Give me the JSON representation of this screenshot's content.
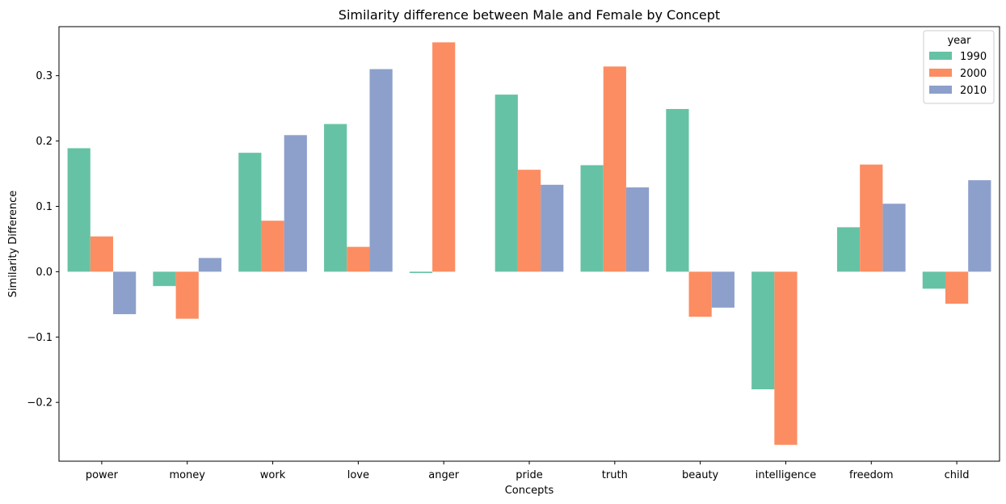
{
  "chart_data": {
    "type": "bar",
    "title": "Similarity difference between Male and Female by Concept",
    "xlabel": "Concepts",
    "ylabel": "Similarity Difference",
    "ylim": [
      -0.29,
      0.375
    ],
    "yticks": [
      -0.2,
      -0.1,
      0.0,
      0.1,
      0.2,
      0.3
    ],
    "ytick_labels": [
      "−0.2",
      "−0.1",
      "0.0",
      "0.1",
      "0.2",
      "0.3"
    ],
    "grid": false,
    "legend": {
      "title": "year",
      "placement": "top-right"
    },
    "categories": [
      "power",
      "money",
      "work",
      "love",
      "anger",
      "pride",
      "truth",
      "beauty",
      "intelligence",
      "freedom",
      "child"
    ],
    "series": [
      {
        "name": "1990",
        "color": "#66c2a5",
        "values": [
          0.189,
          -0.022,
          0.182,
          0.226,
          -0.002,
          0.271,
          0.163,
          0.249,
          -0.18,
          0.068,
          -0.026
        ]
      },
      {
        "name": "2000",
        "color": "#fc8d62",
        "values": [
          0.054,
          -0.072,
          0.078,
          0.038,
          0.351,
          0.156,
          0.314,
          -0.069,
          -0.265,
          0.164,
          -0.049
        ]
      },
      {
        "name": "2010",
        "color": "#8da0cb",
        "values": [
          -0.065,
          0.021,
          0.209,
          0.31,
          0.0,
          0.133,
          0.129,
          -0.055,
          0.0,
          0.104,
          0.14
        ]
      }
    ]
  }
}
